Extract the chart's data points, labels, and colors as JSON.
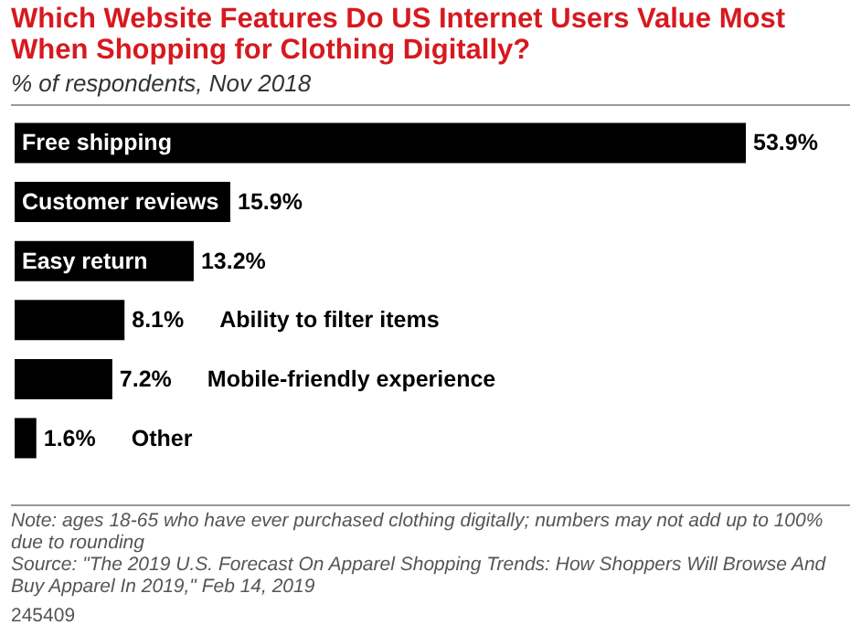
{
  "chart_data": {
    "type": "bar",
    "orientation": "horizontal",
    "title": "Which Website Features Do US Internet Users Value Most When Shopping for Clothing Digitally?",
    "subtitle": "% of respondents, Nov 2018",
    "categories": [
      "Free shipping",
      "Customer reviews",
      "Easy return",
      "Ability to filter items",
      "Mobile-friendly experience",
      "Other"
    ],
    "values": [
      53.9,
      15.9,
      13.2,
      8.1,
      7.2,
      1.6
    ],
    "value_labels": [
      "53.9%",
      "15.9%",
      "13.2%",
      "8.1%",
      "7.2%",
      "1.6%"
    ],
    "color": "#000000",
    "annotations": [
      "Note: ages 18-65 who have ever purchased clothing digitally; numbers may not add up to 100% due to rounding",
      "Source: \"The 2019 U.S. Forecast On Apparel Shopping Trends: How Shoppers Will Browse And Buy Apparel In 2019,\" Feb 14, 2019",
      "245409"
    ]
  }
}
